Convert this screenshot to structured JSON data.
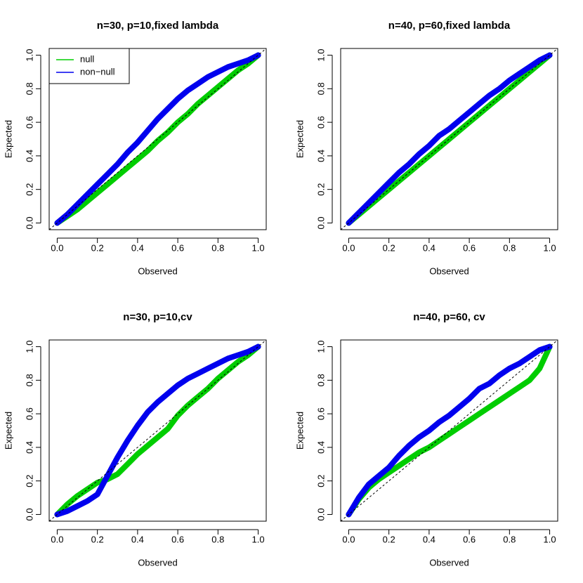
{
  "chart_data": [
    {
      "type": "line",
      "title": "n=30, p=10,fixed lambda",
      "x_label": "Observed",
      "y_label": "Expected",
      "x": [
        0,
        0.05,
        0.1,
        0.15,
        0.2,
        0.25,
        0.3,
        0.35,
        0.4,
        0.45,
        0.5,
        0.55,
        0.6,
        0.65,
        0.7,
        0.75,
        0.8,
        0.85,
        0.9,
        0.95,
        1
      ],
      "series": [
        {
          "name": "null",
          "color": "#00cd00",
          "values": [
            0,
            0.04,
            0.08,
            0.13,
            0.18,
            0.23,
            0.28,
            0.33,
            0.38,
            0.43,
            0.49,
            0.54,
            0.6,
            0.65,
            0.71,
            0.76,
            0.81,
            0.86,
            0.91,
            0.95,
            1
          ]
        },
        {
          "name": "non−null",
          "color": "#0000ee",
          "values": [
            0,
            0.05,
            0.11,
            0.17,
            0.23,
            0.29,
            0.35,
            0.42,
            0.48,
            0.55,
            0.62,
            0.68,
            0.74,
            0.79,
            0.83,
            0.87,
            0.9,
            0.93,
            0.95,
            0.97,
            1
          ]
        }
      ],
      "legend": "topleft",
      "diagonal": true,
      "xlim": [
        -0.04,
        1.04
      ],
      "ylim": [
        -0.04,
        1.04
      ],
      "xticks": [
        {
          "value": 0,
          "label": "0.0"
        },
        0.2,
        0.4,
        0.6,
        0.8,
        {
          "value": 1,
          "label": "1.0"
        }
      ],
      "yticks": [
        {
          "value": 0,
          "label": "0.0"
        },
        0.2,
        0.4,
        0.6,
        0.8,
        {
          "value": 1,
          "label": "1.0"
        }
      ]
    },
    {
      "type": "line",
      "title": "n=40, p=60,fixed lambda",
      "x_label": "Observed",
      "y_label": "Expected",
      "x": [
        0,
        0.05,
        0.1,
        0.15,
        0.2,
        0.25,
        0.3,
        0.35,
        0.4,
        0.45,
        0.5,
        0.55,
        0.6,
        0.65,
        0.7,
        0.75,
        0.8,
        0.85,
        0.9,
        0.95,
        1
      ],
      "series": [
        {
          "color": "#00cd00",
          "values": [
            0,
            0.05,
            0.1,
            0.15,
            0.2,
            0.25,
            0.3,
            0.35,
            0.4,
            0.45,
            0.5,
            0.55,
            0.6,
            0.65,
            0.7,
            0.75,
            0.8,
            0.85,
            0.9,
            0.95,
            1
          ]
        },
        {
          "color": "#0000ee",
          "values": [
            0,
            0.06,
            0.12,
            0.18,
            0.24,
            0.3,
            0.35,
            0.41,
            0.46,
            0.52,
            0.56,
            0.61,
            0.66,
            0.71,
            0.76,
            0.8,
            0.85,
            0.89,
            0.93,
            0.97,
            1
          ]
        }
      ],
      "diagonal": true,
      "xlim": [
        -0.04,
        1.04
      ],
      "ylim": [
        -0.04,
        1.04
      ],
      "xticks": [
        {
          "value": 0,
          "label": "0.0"
        },
        0.2,
        0.4,
        0.6,
        0.8,
        {
          "value": 1,
          "label": "1.0"
        }
      ],
      "yticks": [
        {
          "value": 0,
          "label": "0.0"
        },
        0.2,
        0.4,
        0.6,
        0.8,
        {
          "value": 1,
          "label": "1.0"
        }
      ]
    },
    {
      "type": "line",
      "title": "n=30, p=10,cv",
      "x_label": "Observed",
      "y_label": "Expected",
      "x": [
        0,
        0.05,
        0.1,
        0.15,
        0.2,
        0.25,
        0.3,
        0.35,
        0.4,
        0.45,
        0.5,
        0.55,
        0.6,
        0.65,
        0.7,
        0.75,
        0.8,
        0.85,
        0.9,
        0.95,
        1
      ],
      "series": [
        {
          "color": "#00cd00",
          "values": [
            0,
            0.06,
            0.11,
            0.15,
            0.19,
            0.21,
            0.24,
            0.3,
            0.36,
            0.41,
            0.46,
            0.51,
            0.59,
            0.65,
            0.7,
            0.75,
            0.81,
            0.86,
            0.91,
            0.95,
            1
          ]
        },
        {
          "color": "#0000ee",
          "values": [
            0,
            0.02,
            0.05,
            0.08,
            0.12,
            0.23,
            0.34,
            0.44,
            0.53,
            0.61,
            0.67,
            0.72,
            0.77,
            0.81,
            0.84,
            0.87,
            0.9,
            0.93,
            0.95,
            0.97,
            1
          ]
        }
      ],
      "diagonal": true,
      "xlim": [
        -0.04,
        1.04
      ],
      "ylim": [
        -0.04,
        1.04
      ],
      "xticks": [
        {
          "value": 0,
          "label": "0.0"
        },
        0.2,
        0.4,
        0.6,
        0.8,
        {
          "value": 1,
          "label": "1.0"
        }
      ],
      "yticks": [
        {
          "value": 0,
          "label": "0.0"
        },
        0.2,
        0.4,
        0.6,
        0.8,
        {
          "value": 1,
          "label": "1.0"
        }
      ]
    },
    {
      "type": "line",
      "title": "n=40, p=60, cv",
      "x_label": "Observed",
      "y_label": "Expected",
      "x": [
        0,
        0.05,
        0.1,
        0.15,
        0.2,
        0.25,
        0.3,
        0.35,
        0.4,
        0.45,
        0.5,
        0.55,
        0.6,
        0.65,
        0.7,
        0.75,
        0.8,
        0.85,
        0.9,
        0.95,
        1
      ],
      "series": [
        {
          "color": "#00cd00",
          "values": [
            0,
            0.09,
            0.16,
            0.21,
            0.25,
            0.29,
            0.33,
            0.37,
            0.4,
            0.44,
            0.48,
            0.52,
            0.56,
            0.6,
            0.64,
            0.68,
            0.72,
            0.76,
            0.8,
            0.87,
            1
          ]
        },
        {
          "color": "#0000ee",
          "values": [
            0,
            0.1,
            0.18,
            0.23,
            0.28,
            0.35,
            0.41,
            0.46,
            0.5,
            0.55,
            0.59,
            0.64,
            0.69,
            0.75,
            0.78,
            0.83,
            0.87,
            0.9,
            0.94,
            0.98,
            1
          ]
        }
      ],
      "diagonal": true,
      "xlim": [
        -0.04,
        1.04
      ],
      "ylim": [
        -0.04,
        1.04
      ],
      "xticks": [
        {
          "value": 0,
          "label": "0.0"
        },
        0.2,
        0.4,
        0.6,
        0.8,
        {
          "value": 1,
          "label": "1.0"
        }
      ],
      "yticks": [
        {
          "value": 0,
          "label": "0.0"
        },
        0.2,
        0.4,
        0.6,
        0.8,
        {
          "value": 1,
          "label": "1.0"
        }
      ]
    }
  ]
}
